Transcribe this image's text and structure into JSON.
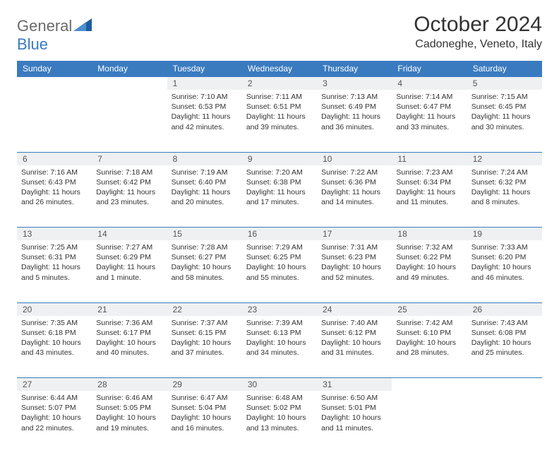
{
  "logo": {
    "text_a": "General",
    "text_b": "Blue"
  },
  "title": "October 2024",
  "location": "Cadoneghe, Veneto, Italy",
  "day_headers": [
    "Sunday",
    "Monday",
    "Tuesday",
    "Wednesday",
    "Thursday",
    "Friday",
    "Saturday"
  ],
  "colors": {
    "header_bg": "#3a7bc0",
    "daynum_bg": "#eef0f1",
    "border": "#3a7bc0"
  },
  "weeks": [
    [
      {
        "n": "",
        "sr": "",
        "ss": "",
        "dl": ""
      },
      {
        "n": "",
        "sr": "",
        "ss": "",
        "dl": ""
      },
      {
        "n": "1",
        "sr": "Sunrise: 7:10 AM",
        "ss": "Sunset: 6:53 PM",
        "dl": "Daylight: 11 hours and 42 minutes."
      },
      {
        "n": "2",
        "sr": "Sunrise: 7:11 AM",
        "ss": "Sunset: 6:51 PM",
        "dl": "Daylight: 11 hours and 39 minutes."
      },
      {
        "n": "3",
        "sr": "Sunrise: 7:13 AM",
        "ss": "Sunset: 6:49 PM",
        "dl": "Daylight: 11 hours and 36 minutes."
      },
      {
        "n": "4",
        "sr": "Sunrise: 7:14 AM",
        "ss": "Sunset: 6:47 PM",
        "dl": "Daylight: 11 hours and 33 minutes."
      },
      {
        "n": "5",
        "sr": "Sunrise: 7:15 AM",
        "ss": "Sunset: 6:45 PM",
        "dl": "Daylight: 11 hours and 30 minutes."
      }
    ],
    [
      {
        "n": "6",
        "sr": "Sunrise: 7:16 AM",
        "ss": "Sunset: 6:43 PM",
        "dl": "Daylight: 11 hours and 26 minutes."
      },
      {
        "n": "7",
        "sr": "Sunrise: 7:18 AM",
        "ss": "Sunset: 6:42 PM",
        "dl": "Daylight: 11 hours and 23 minutes."
      },
      {
        "n": "8",
        "sr": "Sunrise: 7:19 AM",
        "ss": "Sunset: 6:40 PM",
        "dl": "Daylight: 11 hours and 20 minutes."
      },
      {
        "n": "9",
        "sr": "Sunrise: 7:20 AM",
        "ss": "Sunset: 6:38 PM",
        "dl": "Daylight: 11 hours and 17 minutes."
      },
      {
        "n": "10",
        "sr": "Sunrise: 7:22 AM",
        "ss": "Sunset: 6:36 PM",
        "dl": "Daylight: 11 hours and 14 minutes."
      },
      {
        "n": "11",
        "sr": "Sunrise: 7:23 AM",
        "ss": "Sunset: 6:34 PM",
        "dl": "Daylight: 11 hours and 11 minutes."
      },
      {
        "n": "12",
        "sr": "Sunrise: 7:24 AM",
        "ss": "Sunset: 6:32 PM",
        "dl": "Daylight: 11 hours and 8 minutes."
      }
    ],
    [
      {
        "n": "13",
        "sr": "Sunrise: 7:25 AM",
        "ss": "Sunset: 6:31 PM",
        "dl": "Daylight: 11 hours and 5 minutes."
      },
      {
        "n": "14",
        "sr": "Sunrise: 7:27 AM",
        "ss": "Sunset: 6:29 PM",
        "dl": "Daylight: 11 hours and 1 minute."
      },
      {
        "n": "15",
        "sr": "Sunrise: 7:28 AM",
        "ss": "Sunset: 6:27 PM",
        "dl": "Daylight: 10 hours and 58 minutes."
      },
      {
        "n": "16",
        "sr": "Sunrise: 7:29 AM",
        "ss": "Sunset: 6:25 PM",
        "dl": "Daylight: 10 hours and 55 minutes."
      },
      {
        "n": "17",
        "sr": "Sunrise: 7:31 AM",
        "ss": "Sunset: 6:23 PM",
        "dl": "Daylight: 10 hours and 52 minutes."
      },
      {
        "n": "18",
        "sr": "Sunrise: 7:32 AM",
        "ss": "Sunset: 6:22 PM",
        "dl": "Daylight: 10 hours and 49 minutes."
      },
      {
        "n": "19",
        "sr": "Sunrise: 7:33 AM",
        "ss": "Sunset: 6:20 PM",
        "dl": "Daylight: 10 hours and 46 minutes."
      }
    ],
    [
      {
        "n": "20",
        "sr": "Sunrise: 7:35 AM",
        "ss": "Sunset: 6:18 PM",
        "dl": "Daylight: 10 hours and 43 minutes."
      },
      {
        "n": "21",
        "sr": "Sunrise: 7:36 AM",
        "ss": "Sunset: 6:17 PM",
        "dl": "Daylight: 10 hours and 40 minutes."
      },
      {
        "n": "22",
        "sr": "Sunrise: 7:37 AM",
        "ss": "Sunset: 6:15 PM",
        "dl": "Daylight: 10 hours and 37 minutes."
      },
      {
        "n": "23",
        "sr": "Sunrise: 7:39 AM",
        "ss": "Sunset: 6:13 PM",
        "dl": "Daylight: 10 hours and 34 minutes."
      },
      {
        "n": "24",
        "sr": "Sunrise: 7:40 AM",
        "ss": "Sunset: 6:12 PM",
        "dl": "Daylight: 10 hours and 31 minutes."
      },
      {
        "n": "25",
        "sr": "Sunrise: 7:42 AM",
        "ss": "Sunset: 6:10 PM",
        "dl": "Daylight: 10 hours and 28 minutes."
      },
      {
        "n": "26",
        "sr": "Sunrise: 7:43 AM",
        "ss": "Sunset: 6:08 PM",
        "dl": "Daylight: 10 hours and 25 minutes."
      }
    ],
    [
      {
        "n": "27",
        "sr": "Sunrise: 6:44 AM",
        "ss": "Sunset: 5:07 PM",
        "dl": "Daylight: 10 hours and 22 minutes."
      },
      {
        "n": "28",
        "sr": "Sunrise: 6:46 AM",
        "ss": "Sunset: 5:05 PM",
        "dl": "Daylight: 10 hours and 19 minutes."
      },
      {
        "n": "29",
        "sr": "Sunrise: 6:47 AM",
        "ss": "Sunset: 5:04 PM",
        "dl": "Daylight: 10 hours and 16 minutes."
      },
      {
        "n": "30",
        "sr": "Sunrise: 6:48 AM",
        "ss": "Sunset: 5:02 PM",
        "dl": "Daylight: 10 hours and 13 minutes."
      },
      {
        "n": "31",
        "sr": "Sunrise: 6:50 AM",
        "ss": "Sunset: 5:01 PM",
        "dl": "Daylight: 10 hours and 11 minutes."
      },
      {
        "n": "",
        "sr": "",
        "ss": "",
        "dl": ""
      },
      {
        "n": "",
        "sr": "",
        "ss": "",
        "dl": ""
      }
    ]
  ]
}
